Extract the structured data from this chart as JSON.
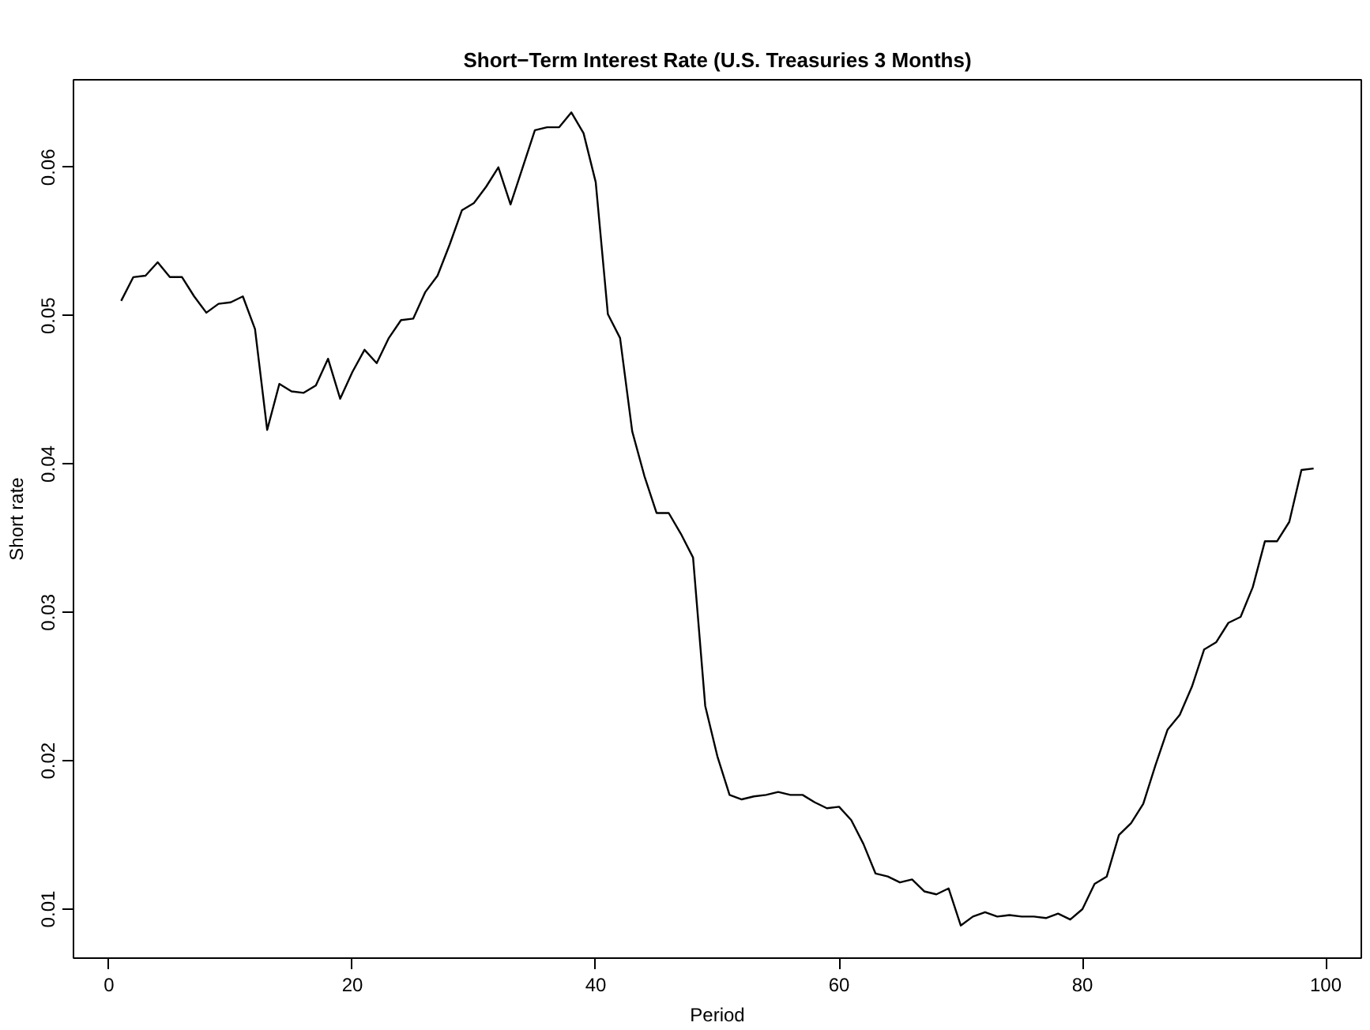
{
  "chart_data": {
    "type": "line",
    "title": "Short−Term Interest Rate (U.S. Treasuries 3 Months)",
    "xlabel": "Period",
    "ylabel": "Short rate",
    "x": [
      1,
      2,
      3,
      4,
      5,
      6,
      7,
      8,
      9,
      10,
      11,
      12,
      13,
      14,
      15,
      16,
      17,
      18,
      19,
      20,
      21,
      22,
      23,
      24,
      25,
      26,
      27,
      28,
      29,
      30,
      31,
      32,
      33,
      34,
      35,
      36,
      37,
      38,
      39,
      40,
      41,
      42,
      43,
      44,
      45,
      46,
      47,
      48,
      49,
      50,
      51,
      52,
      53,
      54,
      55,
      56,
      57,
      58,
      59,
      60,
      61,
      62,
      63,
      64,
      65,
      66,
      67,
      68,
      69,
      70,
      71,
      72,
      73,
      74,
      75,
      76,
      77,
      78,
      79,
      80,
      81,
      82,
      83,
      84,
      85,
      86,
      87,
      88,
      89,
      90,
      91,
      92,
      93,
      94,
      95,
      96,
      97,
      98,
      99
    ],
    "series": [
      {
        "color": "#000000",
        "values": [
          0.051,
          0.0526,
          0.0527,
          0.0536,
          0.0526,
          0.0526,
          0.0513,
          0.0502,
          0.0508,
          0.0509,
          0.0513,
          0.0491,
          0.0423,
          0.0454,
          0.0449,
          0.0448,
          0.0453,
          0.0471,
          0.0444,
          0.0462,
          0.0477,
          0.0468,
          0.0485,
          0.0497,
          0.0498,
          0.0516,
          0.0527,
          0.0548,
          0.0571,
          0.0576,
          0.0587,
          0.06,
          0.0575,
          0.06,
          0.0625,
          0.0627,
          0.0627,
          0.0637,
          0.0623,
          0.059,
          0.0501,
          0.0485,
          0.0422,
          0.0392,
          0.0367,
          0.0367,
          0.0353,
          0.0337,
          0.0237,
          0.0203,
          0.0177,
          0.0174,
          0.0176,
          0.0177,
          0.0179,
          0.0177,
          0.0177,
          0.0172,
          0.0168,
          0.0169,
          0.016,
          0.0144,
          0.0124,
          0.0122,
          0.0118,
          0.012,
          0.0112,
          0.011,
          0.0114,
          0.0089,
          0.0095,
          0.0098,
          0.0095,
          0.0096,
          0.0095,
          0.0095,
          0.0094,
          0.0097,
          0.0093,
          0.01,
          0.0117,
          0.0122,
          0.015,
          0.0158,
          0.0171,
          0.0197,
          0.0221,
          0.0231,
          0.025,
          0.0275,
          0.028,
          0.0293,
          0.0297,
          0.0317,
          0.0348,
          0.0348,
          0.0361,
          0.0396,
          0.0397
        ]
      }
    ],
    "xlim": [
      -2.92,
      102.92
    ],
    "ylim": [
      0.0067,
      0.0659
    ],
    "xticks": [
      0,
      20,
      40,
      60,
      80,
      100
    ],
    "yticks": [
      0.01,
      0.02,
      0.03,
      0.04,
      0.05,
      0.06
    ],
    "grid": false,
    "marker": "none",
    "line_style": "solid"
  }
}
